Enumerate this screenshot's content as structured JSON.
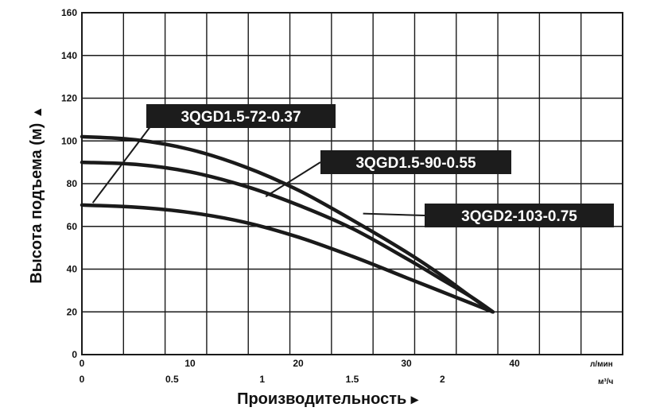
{
  "chart_data": {
    "type": "line",
    "ylabel": "Высота подъема (м)",
    "xlabel": "Производительность",
    "ylabel_arrow": "▲",
    "xlabel_arrow": "▸",
    "ylim": [
      0,
      160
    ],
    "yticks": [
      0,
      20,
      40,
      60,
      80,
      100,
      120,
      140,
      160
    ],
    "x_primary": {
      "unit": "л/мин",
      "lim": [
        0,
        50
      ],
      "ticks": [
        0,
        10,
        20,
        30,
        40
      ],
      "tick_labels": [
        "0",
        "10",
        "20",
        "30",
        "40"
      ]
    },
    "x_secondary": {
      "unit": "м³/ч",
      "lim": [
        0,
        3
      ],
      "ticks": [
        0,
        0.5,
        1,
        1.5,
        2
      ],
      "tick_labels": [
        "0",
        "0.5",
        "1",
        "1.5",
        "2"
      ]
    },
    "grid": true,
    "colors": {
      "curve": "#1a1a1a",
      "grid": "#1a1a1a",
      "label_bg": "#1c1c1c",
      "label_text": "#ffffff"
    },
    "series": [
      {
        "name": "3QGD1.5-72-0.37",
        "x": [
          0,
          5,
          10,
          15,
          20,
          25,
          30,
          33,
          36,
          38
        ],
        "y": [
          102,
          100.5,
          96,
          88,
          77,
          63,
          48,
          38,
          27,
          20
        ]
      },
      {
        "name": "3QGD1.5-90-0.55",
        "x": [
          0,
          5,
          10,
          15,
          20,
          25,
          30,
          33,
          36,
          38
        ],
        "y": [
          90,
          89,
          85.5,
          79,
          70,
          59,
          45,
          36,
          27,
          20
        ]
      },
      {
        "name": "3QGD2-103-0.75",
        "x": [
          0,
          5,
          10,
          15,
          20,
          25,
          30,
          33,
          36,
          38
        ],
        "y": [
          70,
          69,
          66.5,
          62,
          55,
          46,
          36,
          30,
          24,
          20
        ]
      }
    ],
    "labels": [
      {
        "text": "3QGD1.5-72-0.37",
        "series": 0,
        "point": [
          1,
          71
        ]
      },
      {
        "text": "3QGD1.5-90-0.55",
        "series": 1,
        "point": [
          17,
          74
        ]
      },
      {
        "text": "3QGD2-103-0.75",
        "series": 2,
        "point": [
          26,
          66
        ]
      }
    ]
  }
}
